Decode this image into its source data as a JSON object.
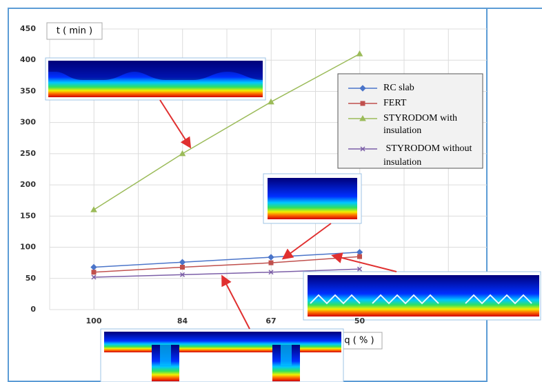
{
  "chart_data": {
    "type": "line",
    "y_label": "t ( min )",
    "x_label": "q ( % )",
    "categories": [
      "100",
      "84",
      "67",
      "50"
    ],
    "series": [
      {
        "name": "RC slab",
        "color": "#4a74c9",
        "marker": "diamond",
        "values": [
          68,
          76,
          84,
          92
        ]
      },
      {
        "name": "FERT",
        "color": "#c0504d",
        "marker": "square",
        "values": [
          60,
          68,
          75,
          85
        ]
      },
      {
        "name": "STYRODOM with insulation",
        "color": "#9bbb59",
        "marker": "triangle",
        "values": [
          160,
          250,
          333,
          410
        ]
      },
      {
        "name": " STYRODOM without insulation",
        "color": "#7b5ea7",
        "marker": "x",
        "values": [
          52,
          56,
          60,
          65
        ]
      }
    ],
    "ylim": [
      0,
      450
    ],
    "yticks": [
      0,
      50,
      100,
      150,
      200,
      250,
      300,
      350,
      400,
      450
    ],
    "grid": true
  }
}
